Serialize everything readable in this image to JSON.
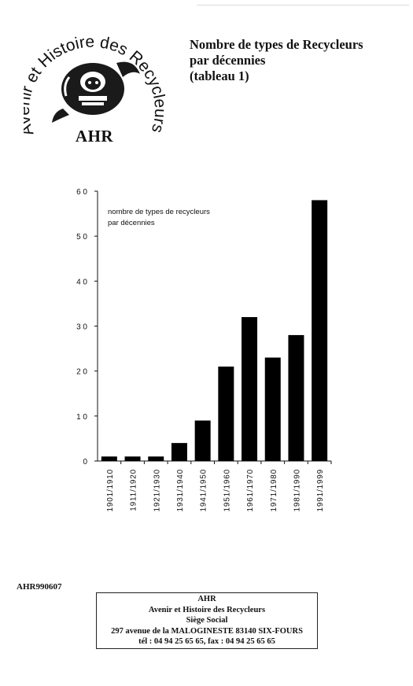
{
  "logo": {
    "circular_text": "Avenir et Histoire des Recycleurs",
    "abbreviation": "AHR"
  },
  "title": {
    "line1": "Nombre de types de Recycleurs",
    "line2": "par décennies",
    "line3": "(tableau 1)"
  },
  "chart_data": {
    "type": "bar",
    "categories": [
      "1901/1910",
      "1911/1920",
      "1921/1930",
      "1931/1940",
      "1941/1950",
      "1951/1960",
      "1961/1970",
      "1971/1980",
      "1981/1990",
      "1991/1999"
    ],
    "series": [
      {
        "values": [
          1,
          1,
          1,
          4,
          9,
          21,
          32,
          23,
          28,
          58
        ]
      }
    ],
    "annotation": [
      "nombre de types de recycleurs",
      "par décennies"
    ],
    "ylim": [
      0,
      60
    ],
    "yticks": [
      "0",
      "1 0",
      "2 0",
      "3 0",
      "4 0",
      "5 0",
      "6 0"
    ],
    "grid": false,
    "bar_color": "#000000"
  },
  "footer": {
    "doc_ref": "AHR990607",
    "address": {
      "name": "AHR",
      "full_name": "Avenir et Histoire des Recycleurs",
      "office": "Siège Social",
      "street": "297 avenue de la MALOGINESTE  83140 SIX-FOURS",
      "contact": "tél : 04 94 25 65 65,  fax : 04 94 25 65 65"
    }
  }
}
